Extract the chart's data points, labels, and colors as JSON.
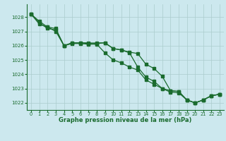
{
  "line1": [
    1028.2,
    1027.5,
    1027.3,
    1027.2,
    1026.0,
    1026.2,
    1026.2,
    1026.2,
    1026.15,
    1026.2,
    1025.8,
    1025.7,
    1025.5,
    1024.5,
    1023.8,
    1023.5,
    1023.0,
    1022.85,
    1022.8,
    1022.2,
    1022.0,
    1022.2,
    1022.5,
    1022.6
  ],
  "line2": [
    1028.2,
    1027.6,
    1027.2,
    1027.1,
    1026.0,
    1026.15,
    1026.15,
    1026.1,
    1026.1,
    1025.5,
    1025.0,
    1024.8,
    1024.5,
    1024.3,
    1023.6,
    1023.3,
    1023.0,
    1022.75,
    1022.7,
    1022.2,
    1022.0,
    1022.2,
    1022.5,
    1022.6
  ],
  "line3": [
    1028.2,
    1027.7,
    1027.3,
    1027.0,
    1026.0,
    1026.2,
    1026.2,
    1026.15,
    1026.2,
    1026.2,
    1025.8,
    1025.7,
    1025.55,
    1025.45,
    1024.7,
    1024.4,
    1023.85,
    1022.85,
    1022.8,
    1022.2,
    1022.0,
    1022.2,
    1022.5,
    1022.6
  ],
  "x": [
    0,
    1,
    2,
    3,
    4,
    5,
    6,
    7,
    8,
    9,
    10,
    11,
    12,
    13,
    14,
    15,
    16,
    17,
    18,
    19,
    20,
    21,
    22,
    23
  ],
  "line_color": "#1a6b2e",
  "bg_color": "#cce8ee",
  "grid_color": "#aacccc",
  "xlabel": "Graphe pression niveau de la mer (hPa)",
  "ylim_min": 1021.5,
  "ylim_max": 1028.9,
  "yticks": [
    1022,
    1023,
    1024,
    1025,
    1026,
    1027,
    1028
  ],
  "xticks": [
    0,
    1,
    2,
    3,
    4,
    5,
    6,
    7,
    8,
    9,
    10,
    11,
    12,
    13,
    14,
    15,
    16,
    17,
    18,
    19,
    20,
    21,
    22,
    23
  ],
  "xlabel_fontsize": 6.0,
  "tick_fontsize": 5.0,
  "linewidth": 0.9,
  "markersize": 2.2
}
